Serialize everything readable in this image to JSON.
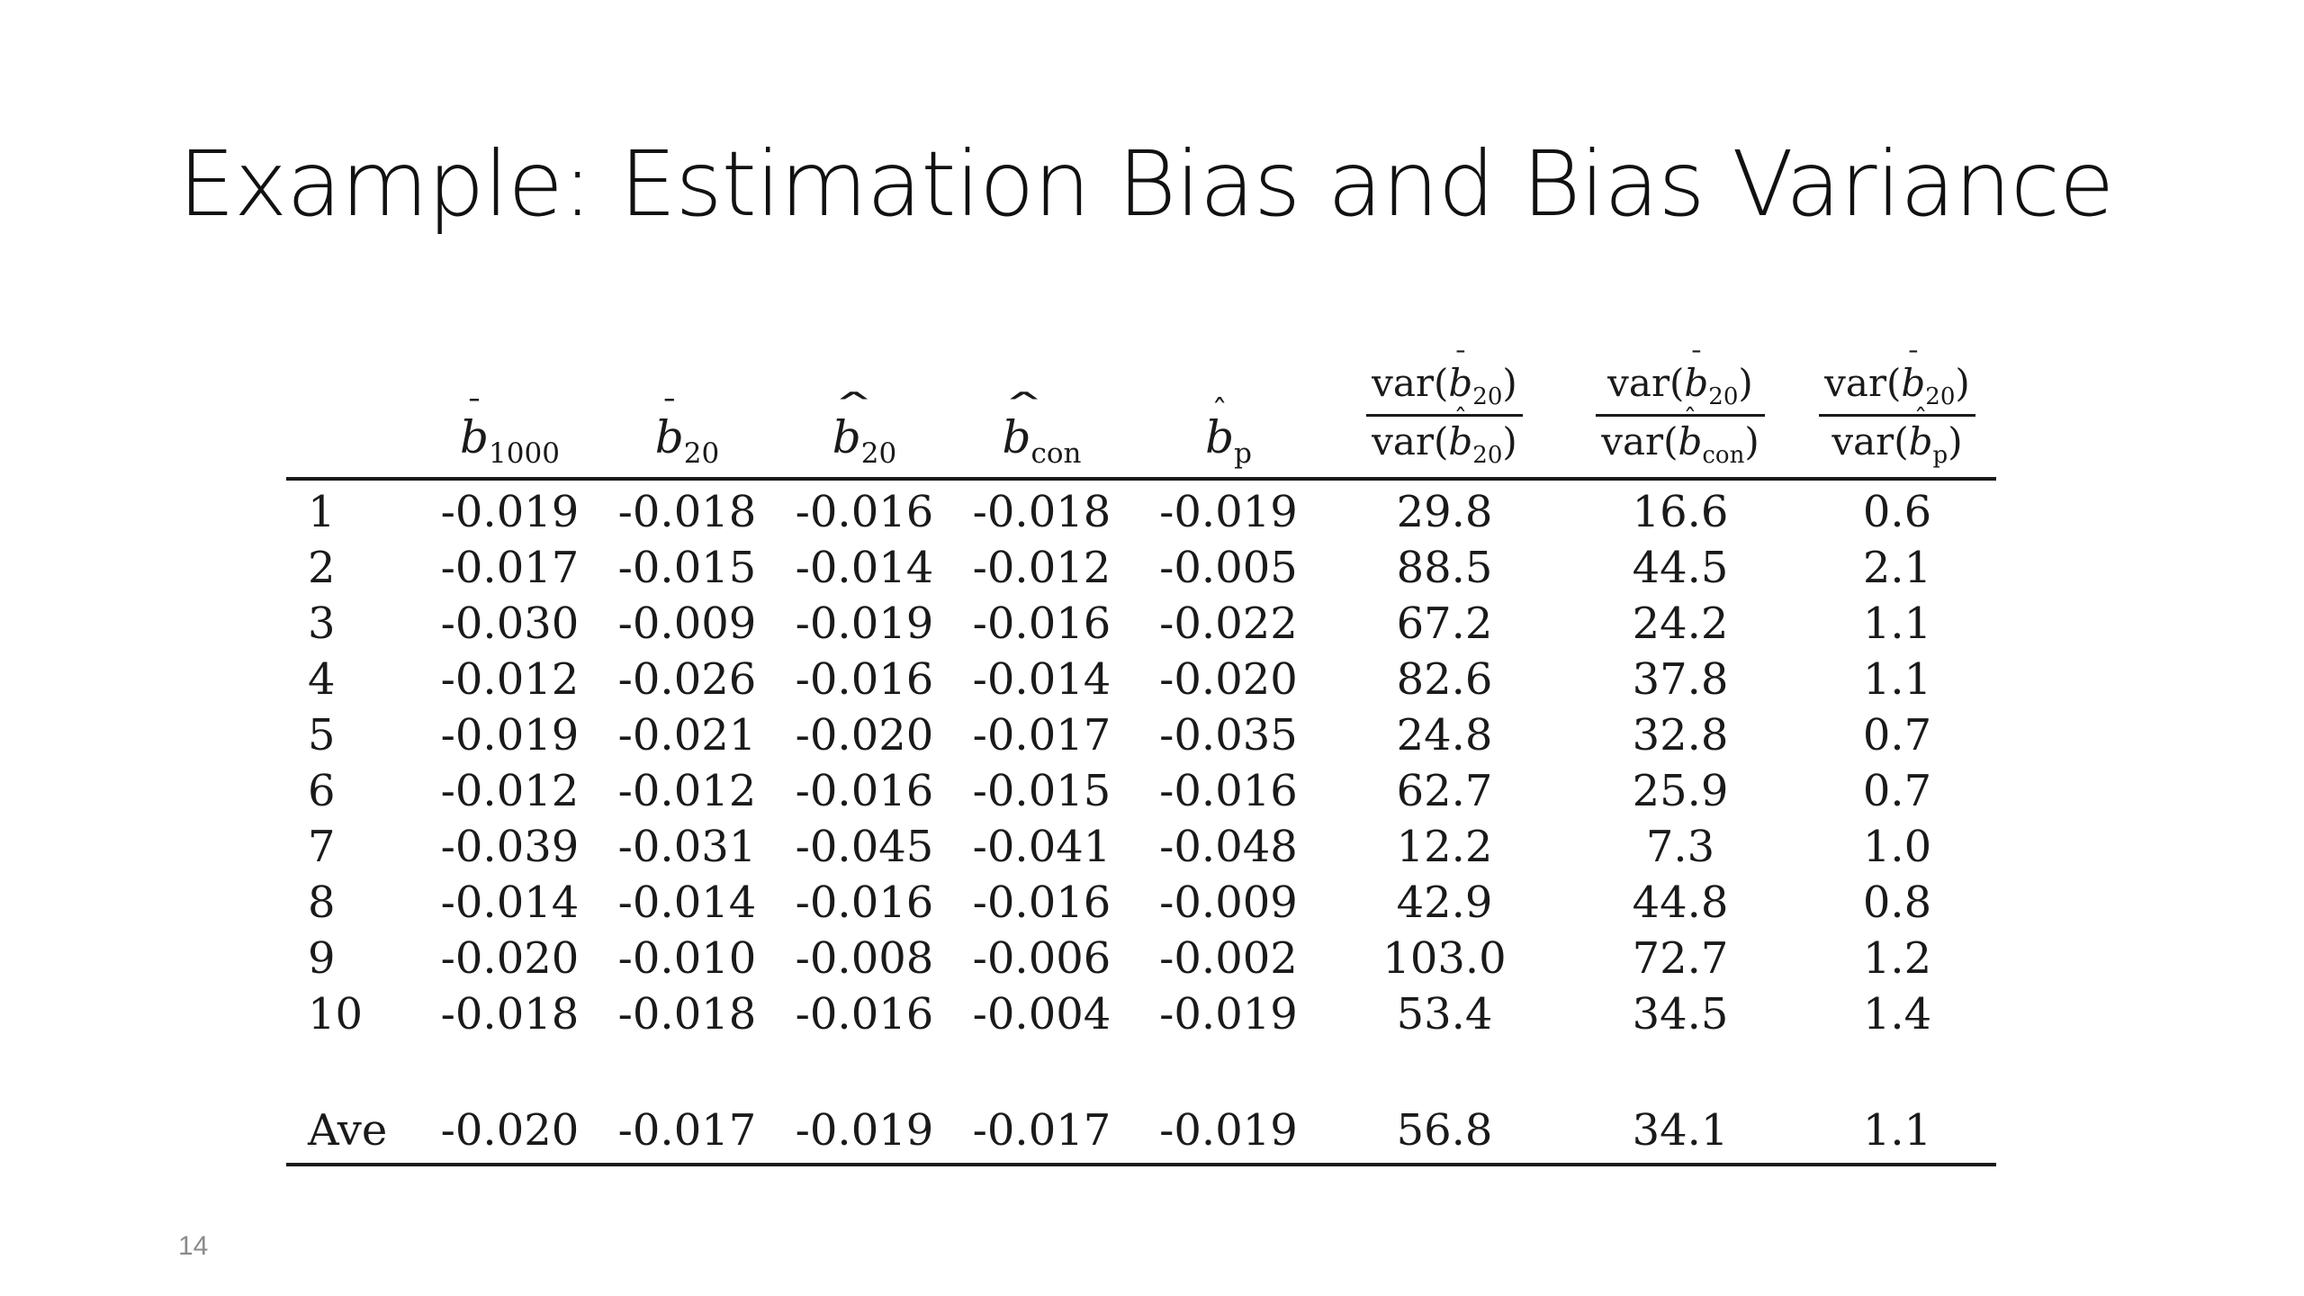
{
  "slide": {
    "title": "Example: Estimation Bias and Bias Variance",
    "page_number": "14"
  },
  "table": {
    "headers": [
      {
        "base": "b",
        "accent": "bar",
        "sub": "1000"
      },
      {
        "base": "b",
        "accent": "bar",
        "sub": "20"
      },
      {
        "base": "b",
        "accent": "widehat",
        "sub": "20"
      },
      {
        "base": "b",
        "accent": "widehat",
        "sub": "con"
      },
      {
        "base": "b",
        "accent": "hat",
        "sub": "p"
      },
      {
        "num_base": "b",
        "num_accent": "bar",
        "num_sub": "20",
        "den_base": "b",
        "den_accent": "hat",
        "den_sub": "20",
        "prefix": "var"
      },
      {
        "num_base": "b",
        "num_accent": "bar",
        "num_sub": "20",
        "den_base": "b",
        "den_accent": "hat",
        "den_sub": "con",
        "prefix": "var"
      },
      {
        "num_base": "b",
        "num_accent": "bar",
        "num_sub": "20",
        "den_base": "b",
        "den_accent": "hat",
        "den_sub": "p",
        "prefix": "var"
      }
    ],
    "rows": [
      {
        "label": "1",
        "values": [
          "-0.019",
          "-0.018",
          "-0.016",
          "-0.018",
          "-0.019",
          "29.8",
          "16.6",
          "0.6"
        ]
      },
      {
        "label": "2",
        "values": [
          "-0.017",
          "-0.015",
          "-0.014",
          "-0.012",
          "-0.005",
          "88.5",
          "44.5",
          "2.1"
        ]
      },
      {
        "label": "3",
        "values": [
          "-0.030",
          "-0.009",
          "-0.019",
          "-0.016",
          "-0.022",
          "67.2",
          "24.2",
          "1.1"
        ]
      },
      {
        "label": "4",
        "values": [
          "-0.012",
          "-0.026",
          "-0.016",
          "-0.014",
          "-0.020",
          "82.6",
          "37.8",
          "1.1"
        ]
      },
      {
        "label": "5",
        "values": [
          "-0.019",
          "-0.021",
          "-0.020",
          "-0.017",
          "-0.035",
          "24.8",
          "32.8",
          "0.7"
        ]
      },
      {
        "label": "6",
        "values": [
          "-0.012",
          "-0.012",
          "-0.016",
          "-0.015",
          "-0.016",
          "62.7",
          "25.9",
          "0.7"
        ]
      },
      {
        "label": "7",
        "values": [
          "-0.039",
          "-0.031",
          "-0.045",
          "-0.041",
          "-0.048",
          "12.2",
          "7.3",
          "1.0"
        ]
      },
      {
        "label": "8",
        "values": [
          "-0.014",
          "-0.014",
          "-0.016",
          "-0.016",
          "-0.009",
          "42.9",
          "44.8",
          "0.8"
        ]
      },
      {
        "label": "9",
        "values": [
          "-0.020",
          "-0.010",
          "-0.008",
          "-0.006",
          "-0.002",
          "103.0",
          "72.7",
          "1.2"
        ]
      },
      {
        "label": "10",
        "values": [
          "-0.018",
          "-0.018",
          "-0.016",
          "-0.004",
          "-0.019",
          "53.4",
          "34.5",
          "1.4"
        ]
      }
    ],
    "average": {
      "label": "Ave",
      "values": [
        "-0.020",
        "-0.017",
        "-0.019",
        "-0.017",
        "-0.019",
        "56.8",
        "34.1",
        "1.1"
      ]
    }
  }
}
